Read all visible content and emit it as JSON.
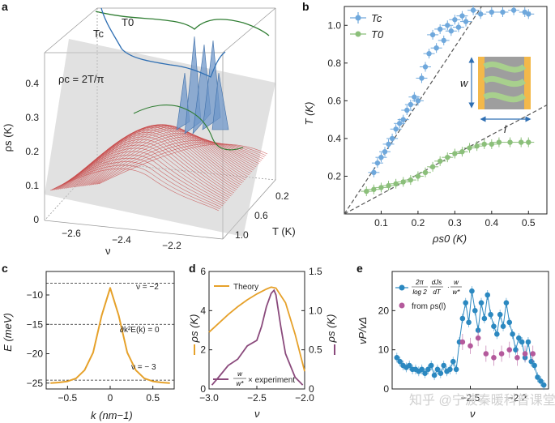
{
  "panels": {
    "a": {
      "label": "a",
      "zticks": [
        "0",
        "0.1",
        "0.2",
        "0.3",
        "0.4"
      ],
      "zlabel": "ρs (K)",
      "xticks": [
        "−2.6",
        "−2.4",
        "−2.2"
      ],
      "xlabel": "ν",
      "yticks": [
        "0.2",
        "0.6",
        "1.0"
      ],
      "ylabel": "T (K)",
      "legend_tc": "Tc",
      "legend_t0": "T0",
      "relation": "ρc = 2T/π",
      "colors": {
        "tc": "#2f6fb3",
        "t0": "#2f7d32",
        "curves": "#c84a4a",
        "plane": "#bfbfbf"
      }
    },
    "b": {
      "label": "b",
      "legend_tc": "Tc",
      "legend_t0": "T0",
      "xlabel": "ρs0 (K)",
      "ylabel": "T (K)",
      "inset_w": "w",
      "inset_l": "l",
      "colors": {
        "tc": "#6fa8dc",
        "t0": "#8bbf7a",
        "guide": "#555555",
        "inset_frame": "#f3b84a",
        "inset_body": "#9e9e9e",
        "inset_stripe": "#a8d08d",
        "arrow": "#2f6fb3"
      }
    },
    "c": {
      "label": "c",
      "xlabel": "k (nm−1)",
      "ylabel": "E (meV)",
      "annotations": [
        "ν = −2",
        "∂k²E(k) = 0",
        "ν = − 3"
      ],
      "color": "#e6a12a"
    },
    "d": {
      "label": "d",
      "legend_theory": "Theory",
      "legend_experiment": "w/w* × experiment",
      "legend_w": "w",
      "legend_wstar": "w*",
      "legend_exp_text": "× experiment",
      "ylabel_left": "ρs (K)",
      "ylabel_right": "ρs (K)",
      "xlabel": "ν",
      "colors": {
        "theory": "#e6a12a",
        "experiment": "#8a4a7c"
      }
    },
    "e": {
      "label": "e",
      "ylabel": "vP/vΔ",
      "xlabel": "ν",
      "legend_formula": "2π/log 2 · dJs/dT · w/w*",
      "legend_formula_num": "2π",
      "legend_formula_den": "log 2",
      "legend_formula_d": "dJs",
      "legend_formula_dt": "dT",
      "legend_formula_w": "w",
      "legend_formula_wstar": "w*",
      "legend_rho": "from ρs(l)",
      "colors": {
        "blue": "#2b88c0",
        "pink": "#b45a9c"
      }
    }
  },
  "watermark": "知乎 @宁波秦暖科普课堂",
  "chart_data": [
    {
      "panel": "b",
      "type": "scatter",
      "xlabel": "ρs0 (K)",
      "ylabel": "T (K)",
      "xlim": [
        0,
        0.55
      ],
      "ylim": [
        0,
        1.1
      ],
      "xticks": [
        0.1,
        0.2,
        0.3,
        0.4,
        0.5
      ],
      "yticks": [
        0.2,
        0.4,
        0.6,
        0.8,
        1.0
      ],
      "series": [
        {
          "name": "Tc",
          "x": [
            0.08,
            0.09,
            0.1,
            0.11,
            0.12,
            0.13,
            0.14,
            0.15,
            0.16,
            0.17,
            0.18,
            0.19,
            0.2,
            0.21,
            0.22,
            0.23,
            0.24,
            0.25,
            0.26,
            0.27,
            0.28,
            0.29,
            0.3,
            0.31,
            0.32,
            0.33,
            0.35,
            0.37,
            0.4,
            0.43,
            0.46,
            0.49,
            0.5
          ],
          "y": [
            0.22,
            0.27,
            0.3,
            0.33,
            0.37,
            0.4,
            0.45,
            0.48,
            0.5,
            0.55,
            0.58,
            0.62,
            0.6,
            0.72,
            0.78,
            0.85,
            0.95,
            0.88,
            0.98,
            0.92,
            1.0,
            0.97,
            1.03,
            0.99,
            1.05,
            1.02,
            1.08,
            1.06,
            1.07,
            1.07,
            1.08,
            1.07,
            1.06
          ]
        },
        {
          "name": "T0",
          "x": [
            0.06,
            0.08,
            0.1,
            0.12,
            0.14,
            0.16,
            0.18,
            0.2,
            0.22,
            0.24,
            0.26,
            0.28,
            0.3,
            0.32,
            0.34,
            0.36,
            0.38,
            0.4,
            0.42,
            0.45,
            0.48,
            0.5
          ],
          "y": [
            0.12,
            0.13,
            0.14,
            0.15,
            0.16,
            0.17,
            0.18,
            0.2,
            0.22,
            0.25,
            0.28,
            0.3,
            0.32,
            0.33,
            0.35,
            0.36,
            0.37,
            0.37,
            0.38,
            0.38,
            0.38,
            0.38
          ]
        }
      ],
      "guides": [
        {
          "slope": 2.95
        },
        {
          "slope": 1.05
        }
      ]
    },
    {
      "panel": "c",
      "type": "line",
      "xlabel": "k (nm−1)",
      "ylabel": "E (meV)",
      "xlim": [
        -0.75,
        0.75
      ],
      "ylim": [
        -26,
        -6
      ],
      "xticks": [
        -0.5,
        0,
        0.5
      ],
      "yticks": [
        -10,
        -15,
        -20,
        -25
      ],
      "x": [
        -0.7,
        -0.6,
        -0.5,
        -0.4,
        -0.3,
        -0.2,
        -0.1,
        0,
        0.1,
        0.2,
        0.3,
        0.4,
        0.5,
        0.6,
        0.7
      ],
      "y": [
        -25.0,
        -24.9,
        -24.7,
        -24.2,
        -22.8,
        -19.8,
        -13.5,
        -8.8,
        -13.5,
        -19.8,
        -22.8,
        -24.2,
        -24.7,
        -24.9,
        -25.0
      ],
      "hlines": [
        -8,
        -15,
        -24.5
      ]
    },
    {
      "panel": "d",
      "type": "line",
      "xlabel": "ν",
      "xlim": [
        -3.0,
        -2.0
      ],
      "xticks": [
        -3.0,
        -2.5,
        -2.0
      ],
      "series": [
        {
          "name": "Theory",
          "axis": "left",
          "ylim": [
            0,
            6
          ],
          "yticks": [
            0,
            2,
            4,
            6
          ],
          "x": [
            -3.0,
            -2.9,
            -2.8,
            -2.7,
            -2.6,
            -2.5,
            -2.4,
            -2.35,
            -2.3,
            -2.2,
            -2.1,
            -2.0
          ],
          "y": [
            2.9,
            3.35,
            3.8,
            4.2,
            4.55,
            4.85,
            5.1,
            5.2,
            5.15,
            4.4,
            2.8,
            0.9
          ]
        },
        {
          "name": "w/w* × experiment",
          "axis": "right",
          "ylim": [
            0,
            1.5
          ],
          "yticks": [
            0,
            0.5,
            1.0,
            1.5
          ],
          "x": [
            -2.97,
            -2.9,
            -2.8,
            -2.7,
            -2.6,
            -2.5,
            -2.45,
            -2.4,
            -2.35,
            -2.32,
            -2.3,
            -2.25,
            -2.2,
            -2.1,
            -2.02
          ],
          "y": [
            0.05,
            0.15,
            0.3,
            0.38,
            0.55,
            0.62,
            0.8,
            1.05,
            1.22,
            1.26,
            1.2,
            0.8,
            0.45,
            0.15,
            0.05
          ]
        }
      ]
    },
    {
      "panel": "e",
      "type": "scatter",
      "xlabel": "ν",
      "ylabel": "vP/vΔ",
      "xlim": [
        -3.0,
        -2.0
      ],
      "ylim": [
        0,
        30
      ],
      "xticks": [
        -2.5,
        -2.2
      ],
      "yticks": [
        0,
        10,
        20
      ],
      "series": [
        {
          "name": "blue",
          "x": [
            -2.97,
            -2.95,
            -2.93,
            -2.91,
            -2.89,
            -2.87,
            -2.85,
            -2.83,
            -2.81,
            -2.79,
            -2.77,
            -2.75,
            -2.73,
            -2.71,
            -2.69,
            -2.67,
            -2.65,
            -2.63,
            -2.61,
            -2.59,
            -2.57,
            -2.55,
            -2.53,
            -2.51,
            -2.49,
            -2.47,
            -2.45,
            -2.43,
            -2.41,
            -2.39,
            -2.37,
            -2.35,
            -2.33,
            -2.31,
            -2.29,
            -2.27,
            -2.25,
            -2.23,
            -2.21,
            -2.19,
            -2.17,
            -2.15,
            -2.13,
            -2.11,
            -2.09,
            -2.07,
            -2.05,
            -2.03
          ],
          "y": [
            8,
            7,
            6,
            5.5,
            6,
            5,
            5,
            4.5,
            5,
            4,
            5,
            6,
            3.5,
            5,
            4,
            6,
            4.5,
            5,
            7,
            5,
            12,
            18,
            22,
            17,
            25,
            20,
            15,
            22,
            18,
            24,
            19,
            16,
            14,
            19,
            16,
            22,
            17,
            14,
            10,
            13,
            12,
            8,
            12,
            7,
            6,
            3,
            2,
            1
          ]
        },
        {
          "name": "pink",
          "x": [
            -2.55,
            -2.5,
            -2.45,
            -2.4,
            -2.35,
            -2.3,
            -2.25,
            -2.2,
            -2.15,
            -2.1
          ],
          "y": [
            12,
            11,
            13,
            9,
            8,
            9,
            10,
            8,
            9,
            9
          ]
        }
      ]
    }
  ]
}
